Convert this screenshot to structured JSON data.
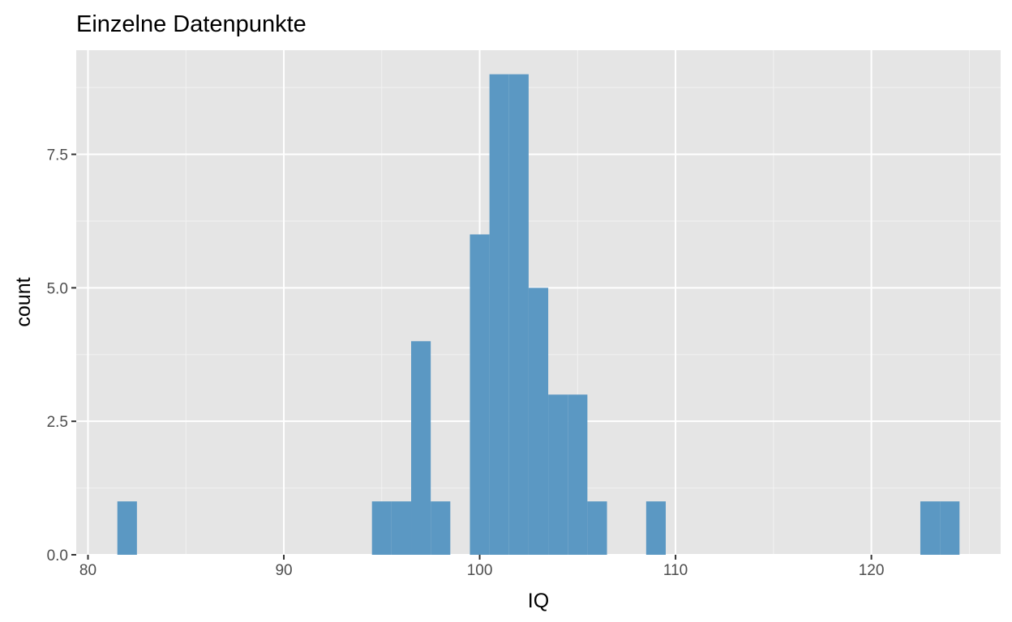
{
  "chart_data": {
    "type": "bar",
    "title": "Einzelne Datenpunkte",
    "xlabel": "IQ",
    "ylabel": "count",
    "xlim": [
      79.4,
      126.6
    ],
    "ylim": [
      0,
      9.45
    ],
    "x_ticks": [
      80,
      90,
      100,
      110,
      120
    ],
    "x_tick_labels": [
      "80",
      "90",
      "100",
      "110",
      "120"
    ],
    "y_ticks": [
      0,
      2.5,
      5,
      7.5
    ],
    "y_tick_labels": [
      "0.0",
      "2.5",
      "5.0",
      "7.5"
    ],
    "y_minor_ticks": [
      1.25,
      3.75,
      6.25,
      8.75
    ],
    "x_minor_ticks": [
      85,
      95,
      105,
      115,
      125
    ],
    "bin_width": 1,
    "bins": [
      {
        "x": 82,
        "count": 1
      },
      {
        "x": 95,
        "count": 1
      },
      {
        "x": 96,
        "count": 1
      },
      {
        "x": 97,
        "count": 4
      },
      {
        "x": 98,
        "count": 1
      },
      {
        "x": 100,
        "count": 6
      },
      {
        "x": 101,
        "count": 9
      },
      {
        "x": 102,
        "count": 9
      },
      {
        "x": 103,
        "count": 5
      },
      {
        "x": 104,
        "count": 3
      },
      {
        "x": 105,
        "count": 3
      },
      {
        "x": 106,
        "count": 1
      },
      {
        "x": 109,
        "count": 1
      },
      {
        "x": 123,
        "count": 1
      },
      {
        "x": 124,
        "count": 1
      }
    ],
    "grid": true,
    "colors": {
      "bar_fill": "#5b98c3",
      "panel_background": "#e5e5e5",
      "grid_major": "#ffffff",
      "grid_minor": "#f2f2f2",
      "tick_text": "#4d4d4d"
    }
  }
}
